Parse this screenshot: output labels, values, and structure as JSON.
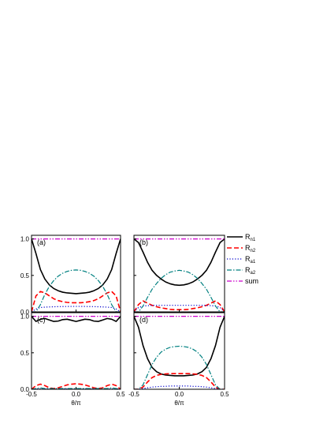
{
  "legend": [
    {
      "label": "R",
      "sub": "n1",
      "color": "#000000",
      "dash": "solid",
      "width": 1.6
    },
    {
      "label": "R",
      "sub": "n2",
      "color": "#ff0000",
      "dash": "dash",
      "width": 1.6
    },
    {
      "label": "R",
      "sub": "a1",
      "color": "#0000cc",
      "dash": "dot",
      "width": 1.2
    },
    {
      "label": "R",
      "sub": "a2",
      "color": "#008080",
      "dash": "dashdot",
      "width": 1.2
    },
    {
      "label": "sum",
      "sub": "",
      "color": "#cc00cc",
      "dash": "dashdotdot",
      "width": 1.2
    }
  ],
  "chart_data": [
    {
      "type": "line",
      "panel": "(a)",
      "xlim": [
        -0.5,
        0.5
      ],
      "ylim": [
        0,
        1.05
      ],
      "yticks": [
        "0.0",
        "0.5",
        "1.0"
      ],
      "xticks": [],
      "xlabel": "",
      "ylabel": "",
      "x": [
        -0.5,
        -0.45,
        -0.4,
        -0.35,
        -0.3,
        -0.25,
        -0.2,
        -0.15,
        -0.1,
        -0.05,
        0,
        0.05,
        0.1,
        0.15,
        0.2,
        0.25,
        0.3,
        0.35,
        0.4,
        0.45,
        0.5
      ],
      "series": [
        {
          "name": "Rn1",
          "values": [
            1.0,
            0.8,
            0.58,
            0.45,
            0.37,
            0.32,
            0.29,
            0.27,
            0.26,
            0.255,
            0.25,
            0.255,
            0.26,
            0.27,
            0.29,
            0.32,
            0.37,
            0.45,
            0.58,
            0.8,
            1.0
          ]
        },
        {
          "name": "Rn2",
          "values": [
            0.0,
            0.22,
            0.28,
            0.26,
            0.22,
            0.18,
            0.155,
            0.14,
            0.13,
            0.125,
            0.125,
            0.125,
            0.13,
            0.14,
            0.155,
            0.18,
            0.22,
            0.26,
            0.28,
            0.22,
            0.0
          ]
        },
        {
          "name": "Ra1",
          "values": [
            0.0,
            0.04,
            0.06,
            0.065,
            0.068,
            0.07,
            0.072,
            0.073,
            0.074,
            0.075,
            0.075,
            0.075,
            0.074,
            0.073,
            0.072,
            0.07,
            0.068,
            0.065,
            0.06,
            0.04,
            0.0
          ]
        },
        {
          "name": "Ra2",
          "values": [
            0.0,
            0.0,
            0.1,
            0.24,
            0.35,
            0.43,
            0.49,
            0.53,
            0.555,
            0.57,
            0.575,
            0.57,
            0.555,
            0.53,
            0.49,
            0.43,
            0.35,
            0.24,
            0.1,
            0.0,
            0.0
          ]
        },
        {
          "name": "sum",
          "values": [
            1.0,
            1.0,
            1.0,
            1.0,
            1.0,
            1.0,
            1.0,
            1.0,
            1.0,
            1.0,
            1.0,
            1.0,
            1.0,
            1.0,
            1.0,
            1.0,
            1.0,
            1.0,
            1.0,
            1.0,
            1.0
          ]
        }
      ]
    },
    {
      "type": "line",
      "panel": "(b)",
      "xlim": [
        -0.5,
        0.5
      ],
      "ylim": [
        0,
        1.05
      ],
      "yticks": [],
      "xticks": [],
      "xlabel": "",
      "ylabel": "",
      "x": [
        -0.5,
        -0.45,
        -0.4,
        -0.35,
        -0.3,
        -0.25,
        -0.2,
        -0.15,
        -0.1,
        -0.05,
        0,
        0.05,
        0.1,
        0.15,
        0.2,
        0.25,
        0.3,
        0.35,
        0.4,
        0.45,
        0.5
      ],
      "series": [
        {
          "name": "Rn1",
          "values": [
            1.0,
            0.95,
            0.82,
            0.68,
            0.57,
            0.5,
            0.45,
            0.41,
            0.385,
            0.37,
            0.365,
            0.37,
            0.385,
            0.41,
            0.45,
            0.5,
            0.57,
            0.68,
            0.82,
            0.95,
            1.0
          ]
        },
        {
          "name": "Rn2",
          "values": [
            0.0,
            0.1,
            0.15,
            0.12,
            0.09,
            0.07,
            0.055,
            0.045,
            0.035,
            0.03,
            0.03,
            0.03,
            0.035,
            0.045,
            0.055,
            0.07,
            0.09,
            0.12,
            0.15,
            0.1,
            0.0
          ]
        },
        {
          "name": "Ra1",
          "values": [
            0.0,
            0.06,
            0.08,
            0.085,
            0.088,
            0.09,
            0.09,
            0.09,
            0.09,
            0.09,
            0.09,
            0.09,
            0.09,
            0.09,
            0.09,
            0.09,
            0.088,
            0.085,
            0.08,
            0.06,
            0.0
          ]
        },
        {
          "name": "Ra2",
          "values": [
            0.0,
            0.0,
            0.08,
            0.2,
            0.31,
            0.39,
            0.46,
            0.51,
            0.545,
            0.56,
            0.57,
            0.56,
            0.545,
            0.51,
            0.46,
            0.39,
            0.31,
            0.2,
            0.08,
            0.0,
            0.0
          ]
        },
        {
          "name": "sum",
          "values": [
            1.0,
            1.0,
            1.0,
            1.0,
            1.0,
            1.0,
            1.0,
            1.0,
            1.0,
            1.0,
            1.0,
            1.0,
            1.0,
            1.0,
            1.0,
            1.0,
            1.0,
            1.0,
            1.0,
            1.0,
            1.0
          ]
        }
      ]
    },
    {
      "type": "line",
      "panel": "(c)",
      "xlim": [
        -0.5,
        0.5
      ],
      "ylim": [
        0,
        1.05
      ],
      "yticks": [
        "0.0",
        "0.5",
        "1.0"
      ],
      "xticks": [
        "-0.5",
        "0.0",
        "0.5"
      ],
      "xlabel": "θ/π",
      "ylabel": "",
      "x": [
        -0.5,
        -0.45,
        -0.4,
        -0.35,
        -0.3,
        -0.25,
        -0.2,
        -0.15,
        -0.1,
        -0.05,
        0,
        0.05,
        0.1,
        0.15,
        0.2,
        0.25,
        0.3,
        0.35,
        0.4,
        0.45,
        0.5
      ],
      "series": [
        {
          "name": "Rn1",
          "values": [
            1.0,
            0.93,
            0.96,
            0.97,
            0.95,
            0.93,
            0.935,
            0.955,
            0.96,
            0.945,
            0.93,
            0.945,
            0.96,
            0.955,
            0.935,
            0.93,
            0.95,
            0.97,
            0.96,
            0.93,
            1.0
          ]
        },
        {
          "name": "Rn2",
          "values": [
            0.0,
            0.05,
            0.07,
            0.05,
            0.02,
            0.01,
            0.02,
            0.04,
            0.06,
            0.07,
            0.075,
            0.07,
            0.06,
            0.04,
            0.02,
            0.01,
            0.02,
            0.05,
            0.07,
            0.05,
            0.0
          ]
        },
        {
          "name": "Ra1",
          "values": [
            0.0,
            0.005,
            0.005,
            0.005,
            0.005,
            0.005,
            0.005,
            0.005,
            0.005,
            0.005,
            0.005,
            0.005,
            0.005,
            0.005,
            0.005,
            0.005,
            0.005,
            0.005,
            0.005,
            0.005,
            0.0
          ]
        },
        {
          "name": "Ra2",
          "values": [
            0.0,
            0.01,
            0.02,
            0.01,
            0.01,
            0.01,
            0.01,
            0.01,
            0.01,
            0.01,
            0.01,
            0.01,
            0.01,
            0.01,
            0.01,
            0.01,
            0.01,
            0.01,
            0.02,
            0.01,
            0.0
          ]
        },
        {
          "name": "sum",
          "values": [
            1.0,
            1.0,
            1.0,
            1.0,
            1.0,
            1.0,
            1.0,
            1.0,
            1.0,
            1.0,
            1.0,
            1.0,
            1.0,
            1.0,
            1.0,
            1.0,
            1.0,
            1.0,
            1.0,
            1.0,
            1.0
          ]
        }
      ]
    },
    {
      "type": "line",
      "panel": "(d)",
      "xlim": [
        -0.5,
        0.5
      ],
      "ylim": [
        0,
        1.05
      ],
      "yticks": [],
      "xticks": [
        "-0.5",
        "0.0",
        "0.5"
      ],
      "xlabel": "θ/π",
      "ylabel": "",
      "x": [
        -0.5,
        -0.45,
        -0.4,
        -0.35,
        -0.3,
        -0.25,
        -0.2,
        -0.15,
        -0.1,
        -0.05,
        0,
        0.05,
        0.1,
        0.15,
        0.2,
        0.25,
        0.3,
        0.35,
        0.4,
        0.45,
        0.5
      ],
      "series": [
        {
          "name": "Rn1",
          "values": [
            1.0,
            0.85,
            0.6,
            0.42,
            0.3,
            0.24,
            0.21,
            0.195,
            0.19,
            0.185,
            0.185,
            0.185,
            0.19,
            0.195,
            0.21,
            0.24,
            0.3,
            0.42,
            0.6,
            0.85,
            1.0
          ]
        },
        {
          "name": "Rn2",
          "values": [
            0.0,
            0.0,
            0.03,
            0.1,
            0.16,
            0.19,
            0.205,
            0.21,
            0.215,
            0.215,
            0.215,
            0.215,
            0.215,
            0.21,
            0.205,
            0.19,
            0.16,
            0.1,
            0.03,
            0.0,
            0.0
          ]
        },
        {
          "name": "Ra1",
          "values": [
            0.0,
            0.0,
            0.01,
            0.02,
            0.03,
            0.035,
            0.04,
            0.04,
            0.045,
            0.045,
            0.045,
            0.045,
            0.045,
            0.04,
            0.04,
            0.035,
            0.03,
            0.02,
            0.01,
            0.0,
            0.0
          ]
        },
        {
          "name": "Ra2",
          "values": [
            0.0,
            0.0,
            0.06,
            0.2,
            0.34,
            0.44,
            0.51,
            0.55,
            0.575,
            0.585,
            0.59,
            0.585,
            0.575,
            0.55,
            0.51,
            0.44,
            0.34,
            0.2,
            0.06,
            0.0,
            0.0
          ]
        },
        {
          "name": "sum",
          "values": [
            1.0,
            1.0,
            1.0,
            1.0,
            1.0,
            1.0,
            1.0,
            1.0,
            1.0,
            1.0,
            1.0,
            1.0,
            1.0,
            1.0,
            1.0,
            1.0,
            1.0,
            1.0,
            1.0,
            1.0,
            1.0
          ]
        }
      ]
    }
  ]
}
